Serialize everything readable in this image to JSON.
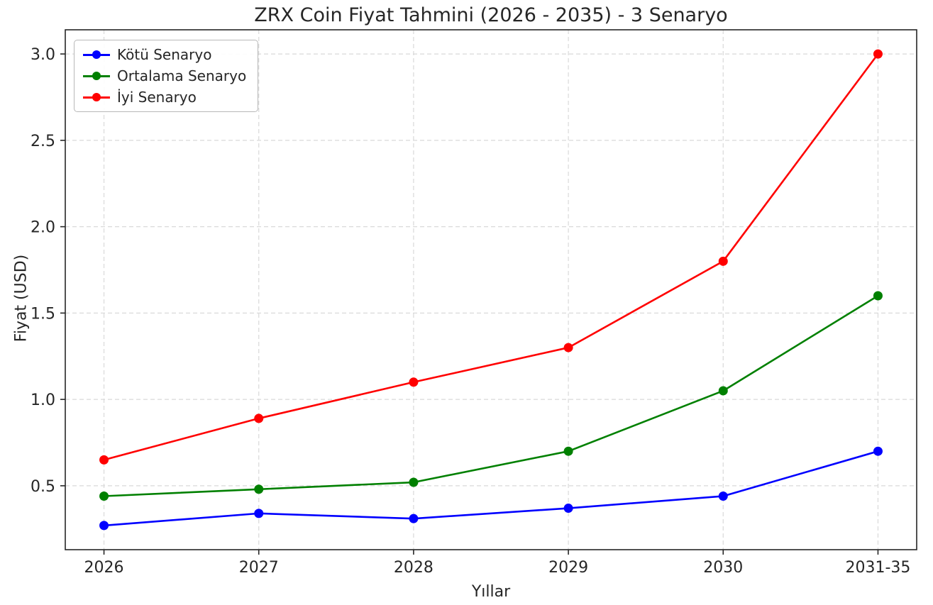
{
  "chart_data": {
    "type": "line",
    "title": "ZRX Coin Fiyat Tahmini (2026 - 2035) - 3 Senaryo",
    "xlabel": "Yıllar",
    "ylabel": "Fiyat (USD)",
    "categories": [
      "2026",
      "2027",
      "2028",
      "2029",
      "2030",
      "2031-35"
    ],
    "series": [
      {
        "name": "Kötü Senaryo",
        "color": "#0000ff",
        "values": [
          0.27,
          0.34,
          0.31,
          0.37,
          0.44,
          0.7
        ]
      },
      {
        "name": "Ortalama Senaryo",
        "color": "#008000",
        "values": [
          0.44,
          0.48,
          0.52,
          0.7,
          1.05,
          1.6
        ]
      },
      {
        "name": "İyi Senaryo",
        "color": "#ff0000",
        "values": [
          0.65,
          0.89,
          1.1,
          1.3,
          1.8,
          3.0
        ]
      }
    ],
    "yticks": [
      "0.5",
      "1.0",
      "1.5",
      "2.0",
      "2.5",
      "3.0"
    ],
    "ylim": [
      0.13,
      3.14
    ],
    "grid": true,
    "grid_style": "dashed",
    "legend_position": "upper left",
    "axis_color": "#262626",
    "grid_color": "#d9d9d9"
  }
}
